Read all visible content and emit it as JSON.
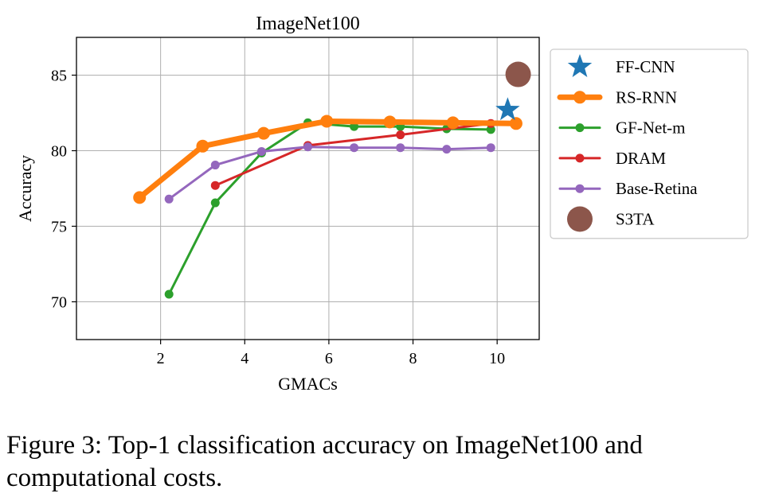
{
  "chart_data": {
    "type": "line",
    "title": "ImageNet100",
    "xlabel": "GMACs",
    "ylabel": "Accuracy",
    "xlim": [
      0,
      11
    ],
    "ylim": [
      67.5,
      87.5
    ],
    "xticks": [
      2,
      4,
      6,
      8,
      10
    ],
    "yticks": [
      70,
      75,
      80,
      85
    ],
    "grid": true,
    "legend_position": "outside-right",
    "series": [
      {
        "name": "FF-CNN",
        "kind": "star",
        "color": "#1f77b4",
        "x": [
          10.25
        ],
        "y": [
          82.7
        ]
      },
      {
        "name": "RS-RNN",
        "kind": "thick-line",
        "color": "#ff7f0e",
        "x": [
          1.5,
          3.0,
          4.45,
          5.95,
          7.45,
          8.95,
          10.45
        ],
        "y": [
          76.9,
          80.3,
          81.15,
          81.95,
          81.9,
          81.85,
          81.8
        ]
      },
      {
        "name": "GF-Net-m",
        "kind": "line",
        "color": "#2ca02c",
        "x": [
          2.2,
          3.3,
          4.4,
          5.5,
          6.6,
          7.7,
          8.8,
          9.85
        ],
        "y": [
          70.5,
          76.55,
          79.85,
          81.85,
          81.6,
          81.6,
          81.45,
          81.4
        ]
      },
      {
        "name": "DRAM",
        "kind": "line",
        "color": "#d62728",
        "x": [
          3.3,
          5.5,
          7.7,
          9.85
        ],
        "y": [
          77.7,
          80.35,
          81.05,
          81.8
        ]
      },
      {
        "name": "Base-Retina",
        "kind": "line",
        "color": "#9467bd",
        "x": [
          2.2,
          3.3,
          4.4,
          5.5,
          6.6,
          7.7,
          8.8,
          9.85
        ],
        "y": [
          76.8,
          79.05,
          79.95,
          80.25,
          80.2,
          80.2,
          80.1,
          80.2
        ]
      },
      {
        "name": "S3TA",
        "kind": "big-dot",
        "color": "#8c564b",
        "x": [
          10.5
        ],
        "y": [
          85.05
        ]
      }
    ]
  },
  "caption": "Figure 3: Top-1 classification accuracy on ImageNet100 and computational costs."
}
